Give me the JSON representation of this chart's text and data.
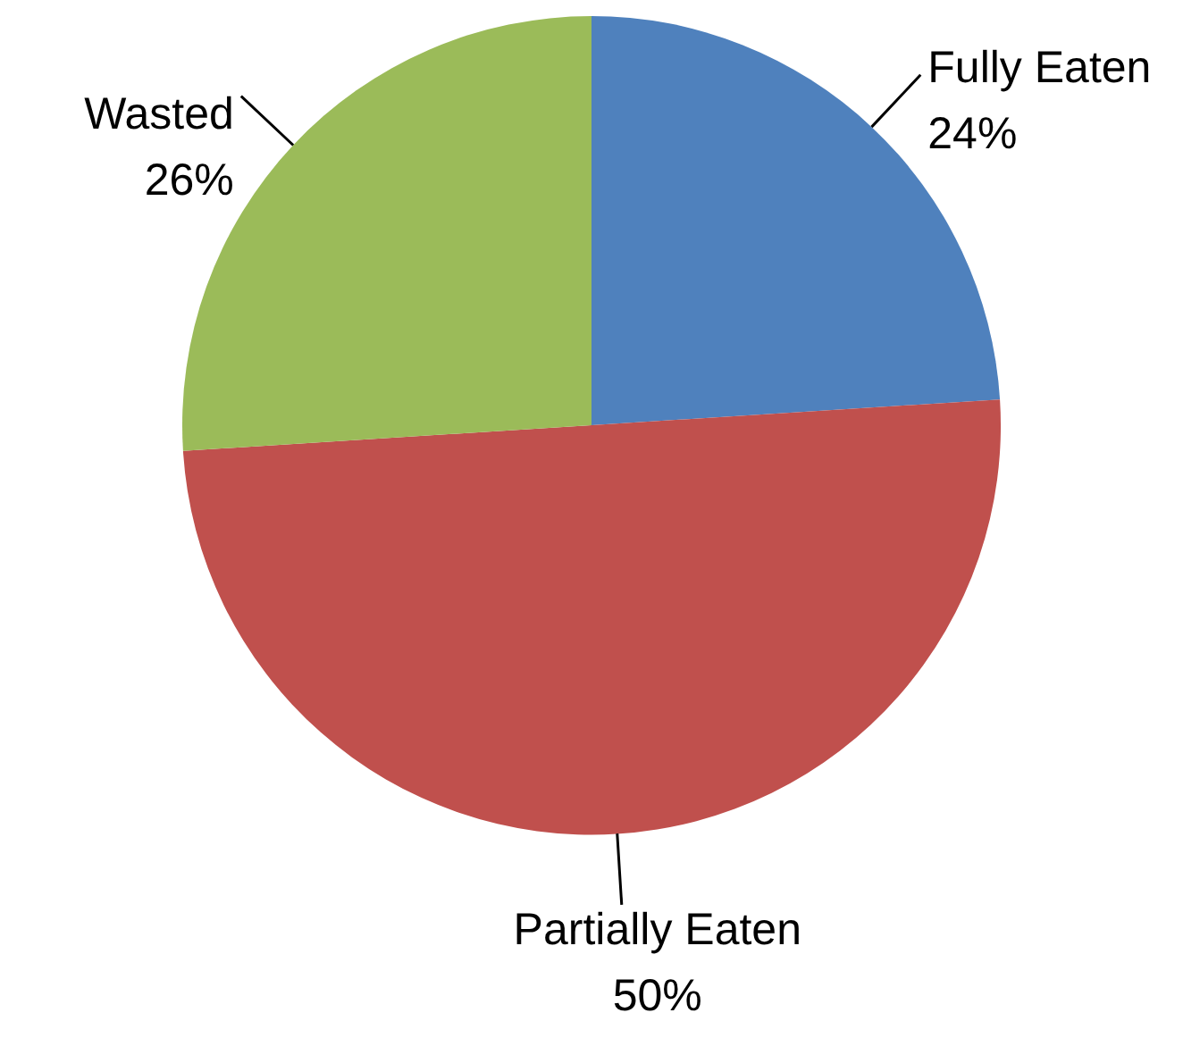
{
  "chart_data": {
    "type": "pie",
    "categories": [
      "Fully Eaten",
      "Partially Eaten",
      "Wasted"
    ],
    "values": [
      24,
      50,
      26
    ],
    "colors": [
      "#4f81bd",
      "#c0504d",
      "#9bbb59"
    ],
    "value_labels": [
      "24%",
      "50%",
      "26%"
    ]
  }
}
